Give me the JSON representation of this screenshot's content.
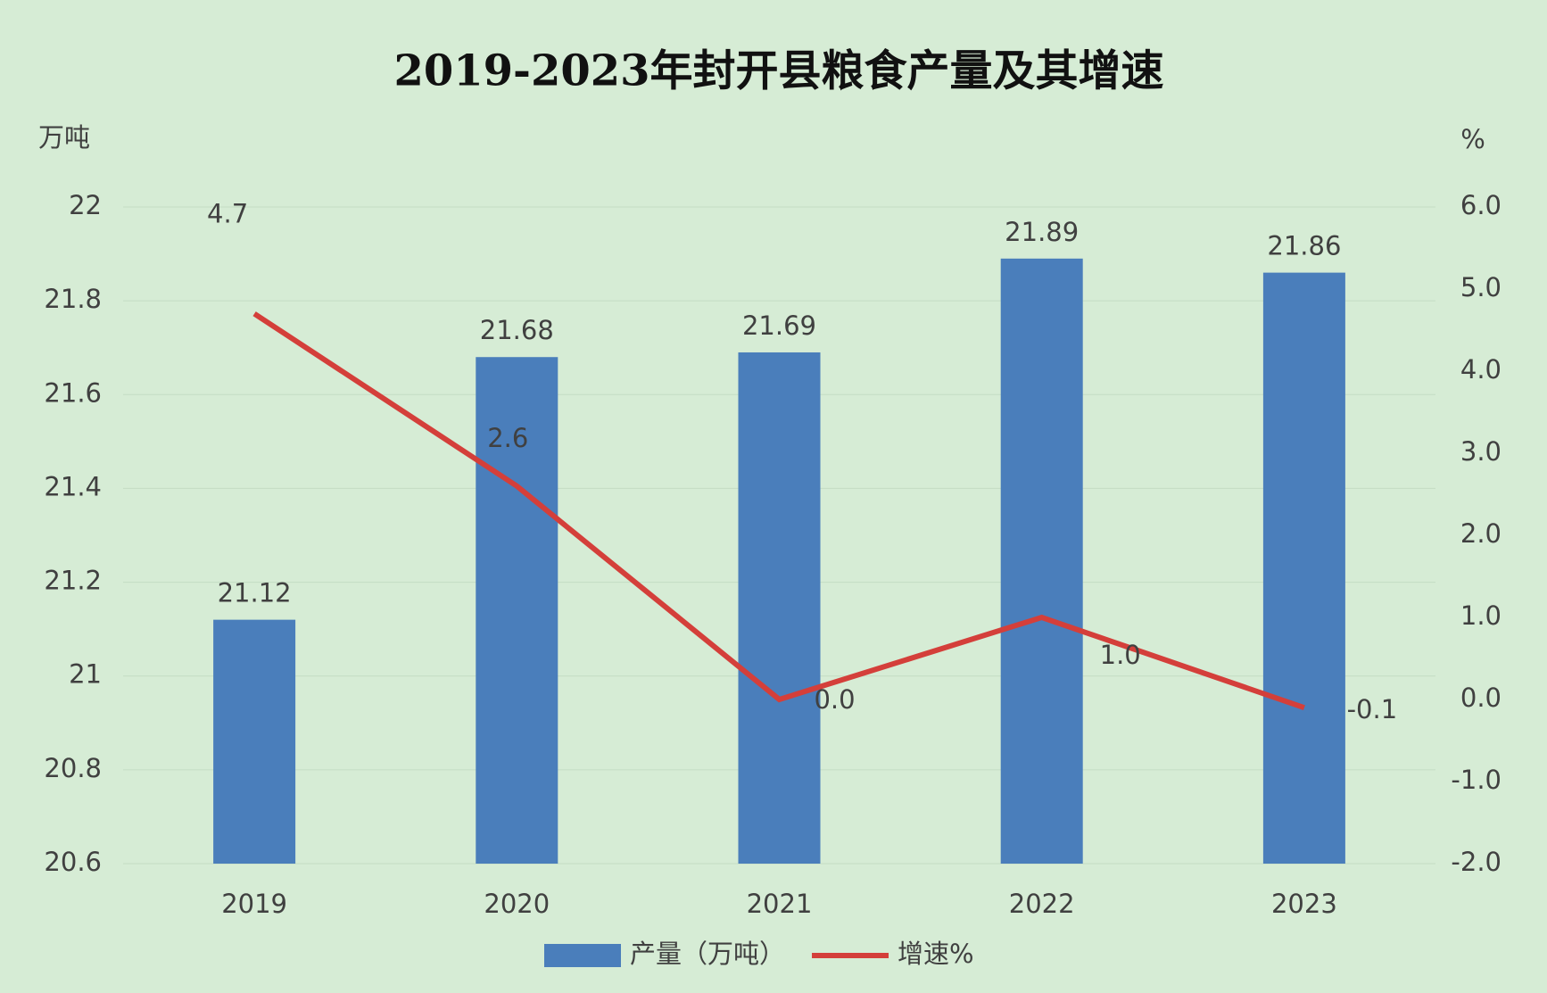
{
  "chart_data": {
    "type": "bar",
    "title": "2019-2023年封开县粮食产量及其增速",
    "y_label": "万吨",
    "y2_label": "%",
    "categories": [
      "2019",
      "2020",
      "2021",
      "2022",
      "2023"
    ],
    "series": [
      {
        "name": "产量（万吨）",
        "type": "bar",
        "color": "#4a7ebb",
        "values": [
          21.12,
          21.68,
          21.69,
          21.89,
          21.86
        ]
      },
      {
        "name": "增速%",
        "type": "line",
        "axis": "y2",
        "color": "#d43f3a",
        "values": [
          4.7,
          2.6,
          0.0,
          1.0,
          -0.1
        ],
        "value_labels": [
          "4.7",
          "2.6",
          "0.0",
          "1.0",
          "-0.1"
        ]
      }
    ],
    "ylim": [
      20.6,
      22
    ],
    "yticks": [
      {
        "value": 22,
        "label": "22"
      },
      21.8,
      21.6,
      21.4,
      21.2,
      {
        "value": 21,
        "label": "21"
      },
      20.8,
      20.6
    ],
    "y2lim": [
      -2,
      6
    ],
    "y2ticks": [
      {
        "value": 6,
        "label": "6.0"
      },
      {
        "value": 5,
        "label": "5.0"
      },
      {
        "value": 4,
        "label": "4.0"
      },
      {
        "value": 3,
        "label": "3.0"
      },
      {
        "value": 2,
        "label": "2.0"
      },
      {
        "value": 1,
        "label": "1.0"
      },
      {
        "value": 0,
        "label": "0.0"
      },
      {
        "value": -1,
        "label": "-1.0"
      },
      {
        "value": -2,
        "label": "-2.0"
      }
    ],
    "grid": true,
    "legend": "bottom"
  }
}
